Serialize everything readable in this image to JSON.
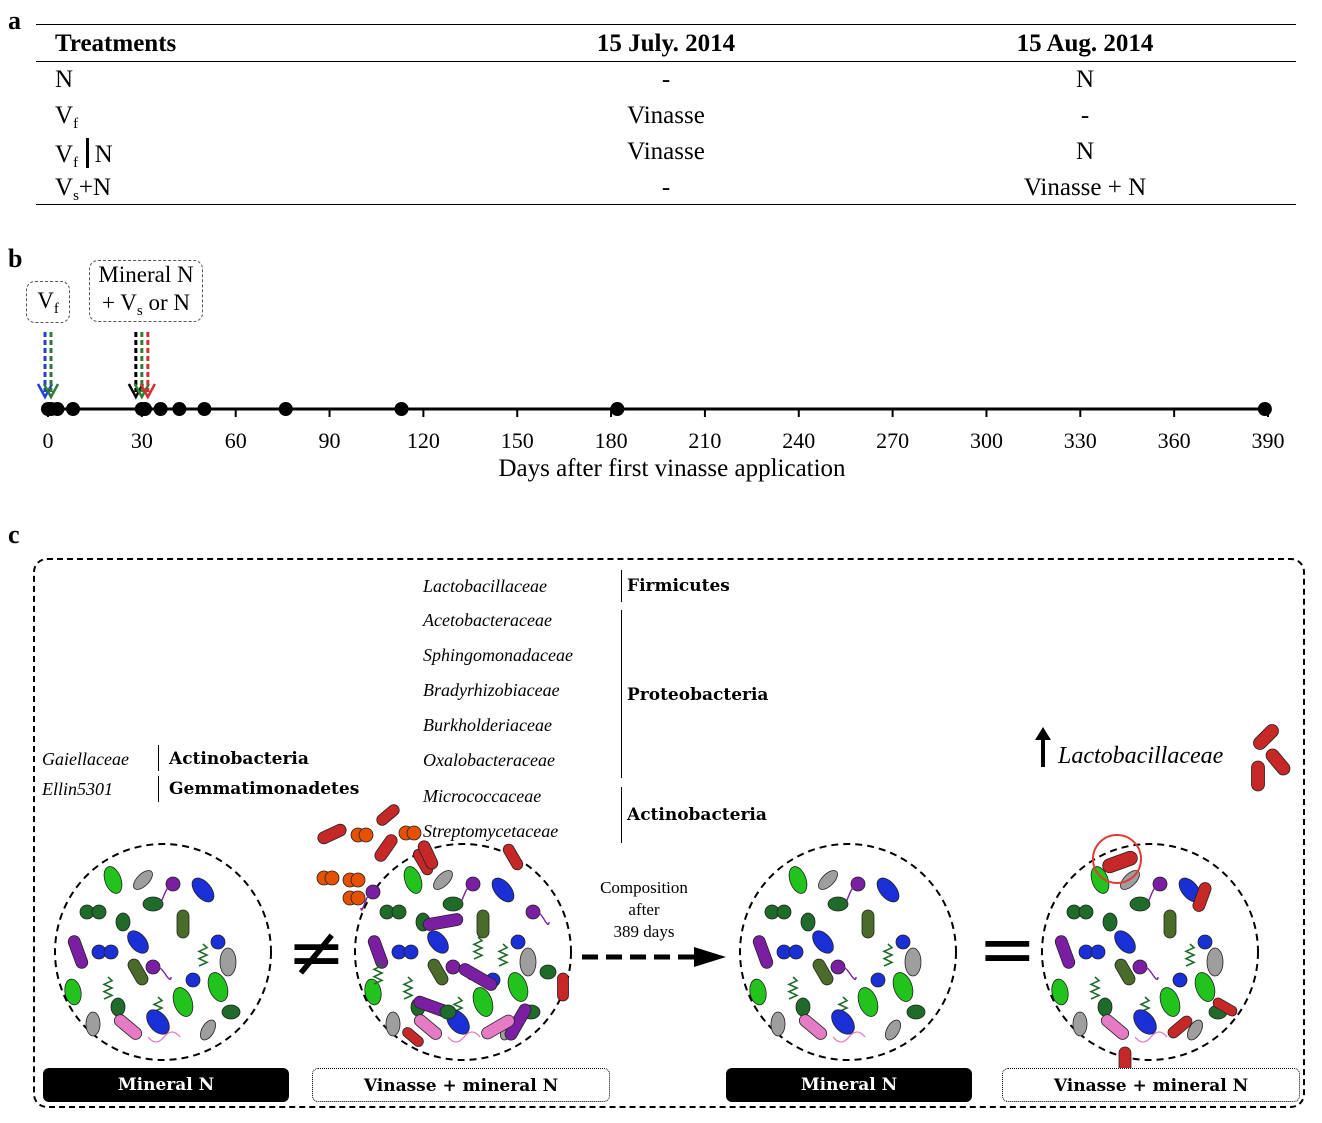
{
  "panel_a": {
    "letter": "a",
    "headers": [
      "Treatments",
      "15 July. 2014",
      "15 Aug. 2014"
    ],
    "rows": [
      {
        "treatment": "N",
        "july": "-",
        "aug": "N"
      },
      {
        "treatment_main": "V",
        "treatment_sub": "f",
        "july": "Vinasse",
        "aug": "-"
      },
      {
        "treatment_main": "V",
        "treatment_sub": "f",
        "treatment_suffix": "N",
        "july": "Vinasse",
        "aug": "N"
      },
      {
        "treatment_main": "V",
        "treatment_sub": "s",
        "treatment_suffix": "+N",
        "july": "-",
        "aug": "Vinasse + N"
      }
    ]
  },
  "panel_b": {
    "letter": "b",
    "box1": {
      "main": "V",
      "sub": "f"
    },
    "box2": {
      "line1": "Mineral N",
      "line2_pre": "+ V",
      "line2_sub": "s",
      "line2_post": " or N"
    },
    "xlabel": "Days after first vinasse application",
    "ticks": [
      0,
      30,
      60,
      90,
      120,
      150,
      180,
      210,
      240,
      270,
      300,
      330,
      360,
      390
    ],
    "sampling_days": [
      0,
      1,
      3,
      8,
      30,
      31,
      36,
      42,
      50,
      76,
      113,
      182,
      389
    ],
    "arrows_first": {
      "day": 0,
      "colors": [
        "#1f3fd8",
        "#2e7d32"
      ]
    },
    "arrows_second": {
      "day": 30,
      "colors": [
        "#000000",
        "#2e7d32",
        "#d32f2f"
      ]
    }
  },
  "panel_c": {
    "letter": "c",
    "left_taxa": [
      {
        "family": "Gaiellaceae",
        "phylum": "Actinobacteria"
      },
      {
        "family": "Ellin5301",
        "phylum": "Gemmatimonadetes"
      }
    ],
    "center_taxa": {
      "firmicutes": {
        "families": [
          "Lactobacillaceae"
        ],
        "phylum": "Firmicutes"
      },
      "proteobacteria": {
        "families": [
          "Acetobacteraceae",
          "Sphingomonadaceae",
          "Bradyrhizobiaceae",
          "Burkholderiaceae",
          "Oxalobacteraceae"
        ],
        "phylum": "Proteobacteria"
      },
      "actinobacteria": {
        "families": [
          "Micrococcaceae",
          "Streptomycetaceae"
        ],
        "phylum": "Actinobacteria"
      }
    },
    "composition_text": [
      "Composition",
      "after",
      "389 days"
    ],
    "up_label": "Lactobacillaceae",
    "not_equal": "≠",
    "equal": "=",
    "labels": [
      "Mineral N",
      "Vinasse + mineral N",
      "Mineral N",
      "Vinasse + mineral N"
    ],
    "colors": {
      "green": "#22c31c",
      "darkgreen": "#1e6b2a",
      "blue": "#1a2fd6",
      "purple": "#7b1fa2",
      "gray": "#9e9e9e",
      "red": "#c62828",
      "orange": "#e65100",
      "pink": "#e57bc4",
      "olive": "#4a6b2a"
    }
  }
}
